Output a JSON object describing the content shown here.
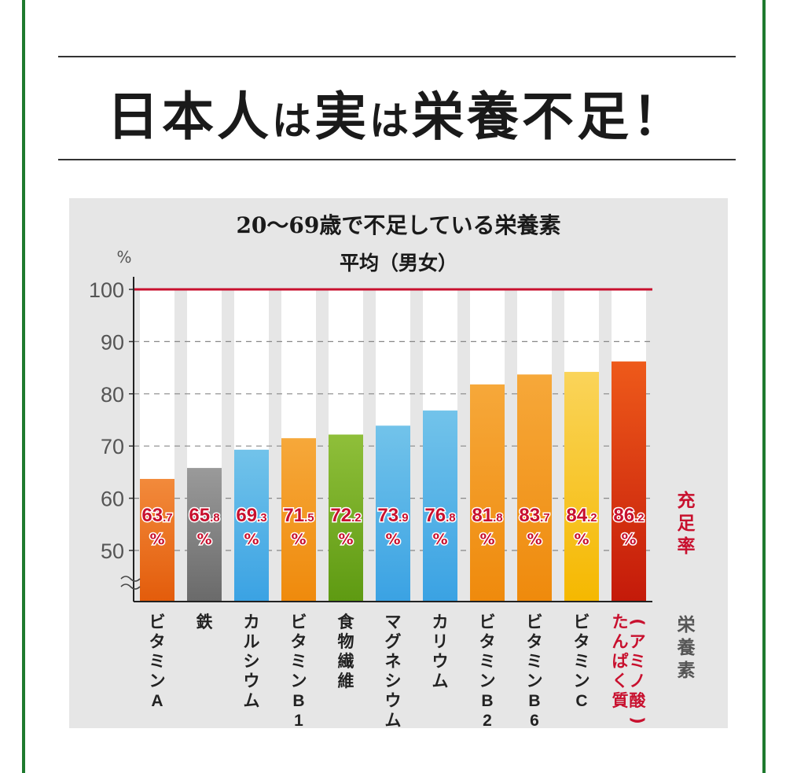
{
  "page": {
    "headline_parts": [
      "日本人",
      "は",
      "実",
      "は",
      "栄養不足！"
    ],
    "headline_small": [
      false,
      true,
      false,
      true,
      false
    ],
    "frame_color": "#1e7a2e"
  },
  "chart_data": {
    "type": "bar",
    "title": "20〜69歳で不足している栄養素",
    "subtitle": "平均（男女）",
    "ylabel": "%",
    "y_ticks": [
      "100",
      "90",
      "80",
      "70",
      "60",
      "50"
    ],
    "ylim": [
      45,
      100
    ],
    "y_axis_break": true,
    "grid": "dashed",
    "reference_line": {
      "value": 100,
      "color": "#c8102e"
    },
    "value_axis_label": "充足率",
    "category_axis_label": "栄養素",
    "categories": [
      "ビタミンA",
      "鉄",
      "カルシウム",
      "ビタミンB1",
      "食物繊維",
      "マグネシウム",
      "カリウム",
      "ビタミンB2",
      "ビタミンB6",
      "ビタミンC",
      "たんぱく質（アミノ酸）"
    ],
    "category_label_lines": [
      [
        "ビタミンA"
      ],
      [
        "鉄"
      ],
      [
        "カルシウム"
      ],
      [
        "ビタミンB1"
      ],
      [
        "食物繊維"
      ],
      [
        "マグネシウム"
      ],
      [
        "カリウム"
      ],
      [
        "ビタミンB2"
      ],
      [
        "ビタミンB6"
      ],
      [
        "ビタミンC"
      ],
      [
        "(アミノ酸)",
        "たんぱく質"
      ]
    ],
    "values": [
      63.7,
      65.8,
      69.3,
      71.5,
      72.2,
      73.9,
      76.8,
      81.8,
      83.7,
      84.2,
      86.2
    ],
    "value_labels": [
      {
        "int": "63",
        "dec": ".7"
      },
      {
        "int": "65",
        "dec": ".8"
      },
      {
        "int": "69",
        "dec": ".3"
      },
      {
        "int": "71",
        "dec": ".5"
      },
      {
        "int": "72",
        "dec": ".2"
      },
      {
        "int": "73",
        "dec": ".9"
      },
      {
        "int": "76",
        "dec": ".8"
      },
      {
        "int": "81",
        "dec": ".8"
      },
      {
        "int": "83",
        "dec": ".7"
      },
      {
        "int": "84",
        "dec": ".2"
      },
      {
        "int": "86",
        "dec": ".2"
      }
    ],
    "value_unit": "%",
    "bar_colors": [
      [
        "#f28a3b",
        "#e35c0b"
      ],
      [
        "#9a9a9a",
        "#6a6a6a"
      ],
      [
        "#72c3ea",
        "#3aa2e3"
      ],
      [
        "#f6a83a",
        "#ef8a0c"
      ],
      [
        "#8fbf3a",
        "#5e9a12"
      ],
      [
        "#72c3ea",
        "#3aa2e3"
      ],
      [
        "#72c3ea",
        "#3aa2e3"
      ],
      [
        "#f6a83a",
        "#ef8a0c"
      ],
      [
        "#f6a83a",
        "#ef8a0c"
      ],
      [
        "#fad45a",
        "#f5b800"
      ],
      [
        "#ee5a1a",
        "#c41a0a"
      ]
    ],
    "highlight_label_color": "#c8102e",
    "label_color": "#c8102e"
  }
}
